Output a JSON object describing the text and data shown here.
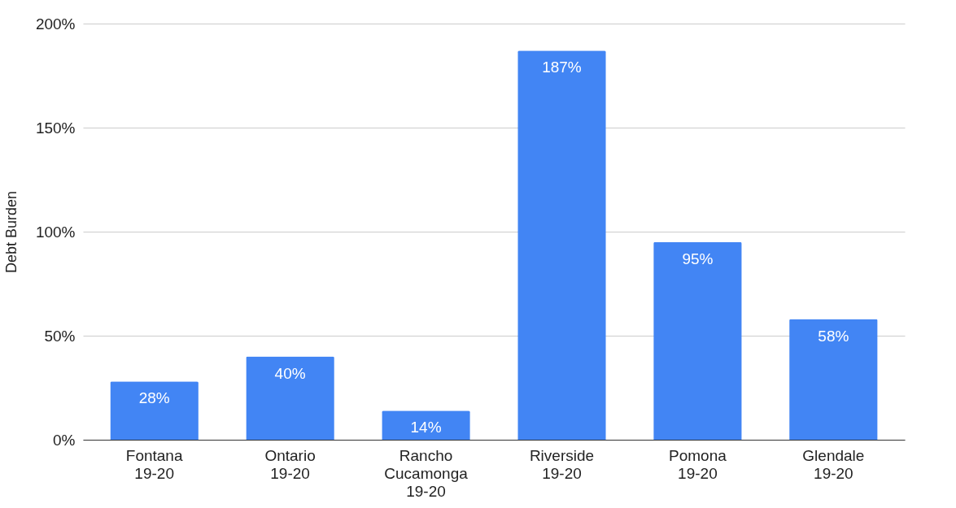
{
  "chart_data": {
    "type": "bar",
    "ylabel": "Debt Burden",
    "categories": [
      "Fontana\n19-20",
      "Ontario\n19-20",
      "Rancho\nCucamonga\n19-20",
      "Riverside\n19-20",
      "Pomona\n19-20",
      "Glendale\n19-20"
    ],
    "values": [
      28,
      40,
      14,
      187,
      95,
      58
    ],
    "value_labels": [
      "28%",
      "40%",
      "14%",
      "187%",
      "95%",
      "58%"
    ],
    "color": "#4285f4",
    "ylim": [
      0,
      200
    ],
    "yticks": [
      {
        "value": 0,
        "label": "0%"
      },
      {
        "value": 50,
        "label": "50%"
      },
      {
        "value": 100,
        "label": "100%"
      },
      {
        "value": 150,
        "label": "150%"
      },
      {
        "value": 200,
        "label": "200%"
      }
    ],
    "grid": "y"
  }
}
